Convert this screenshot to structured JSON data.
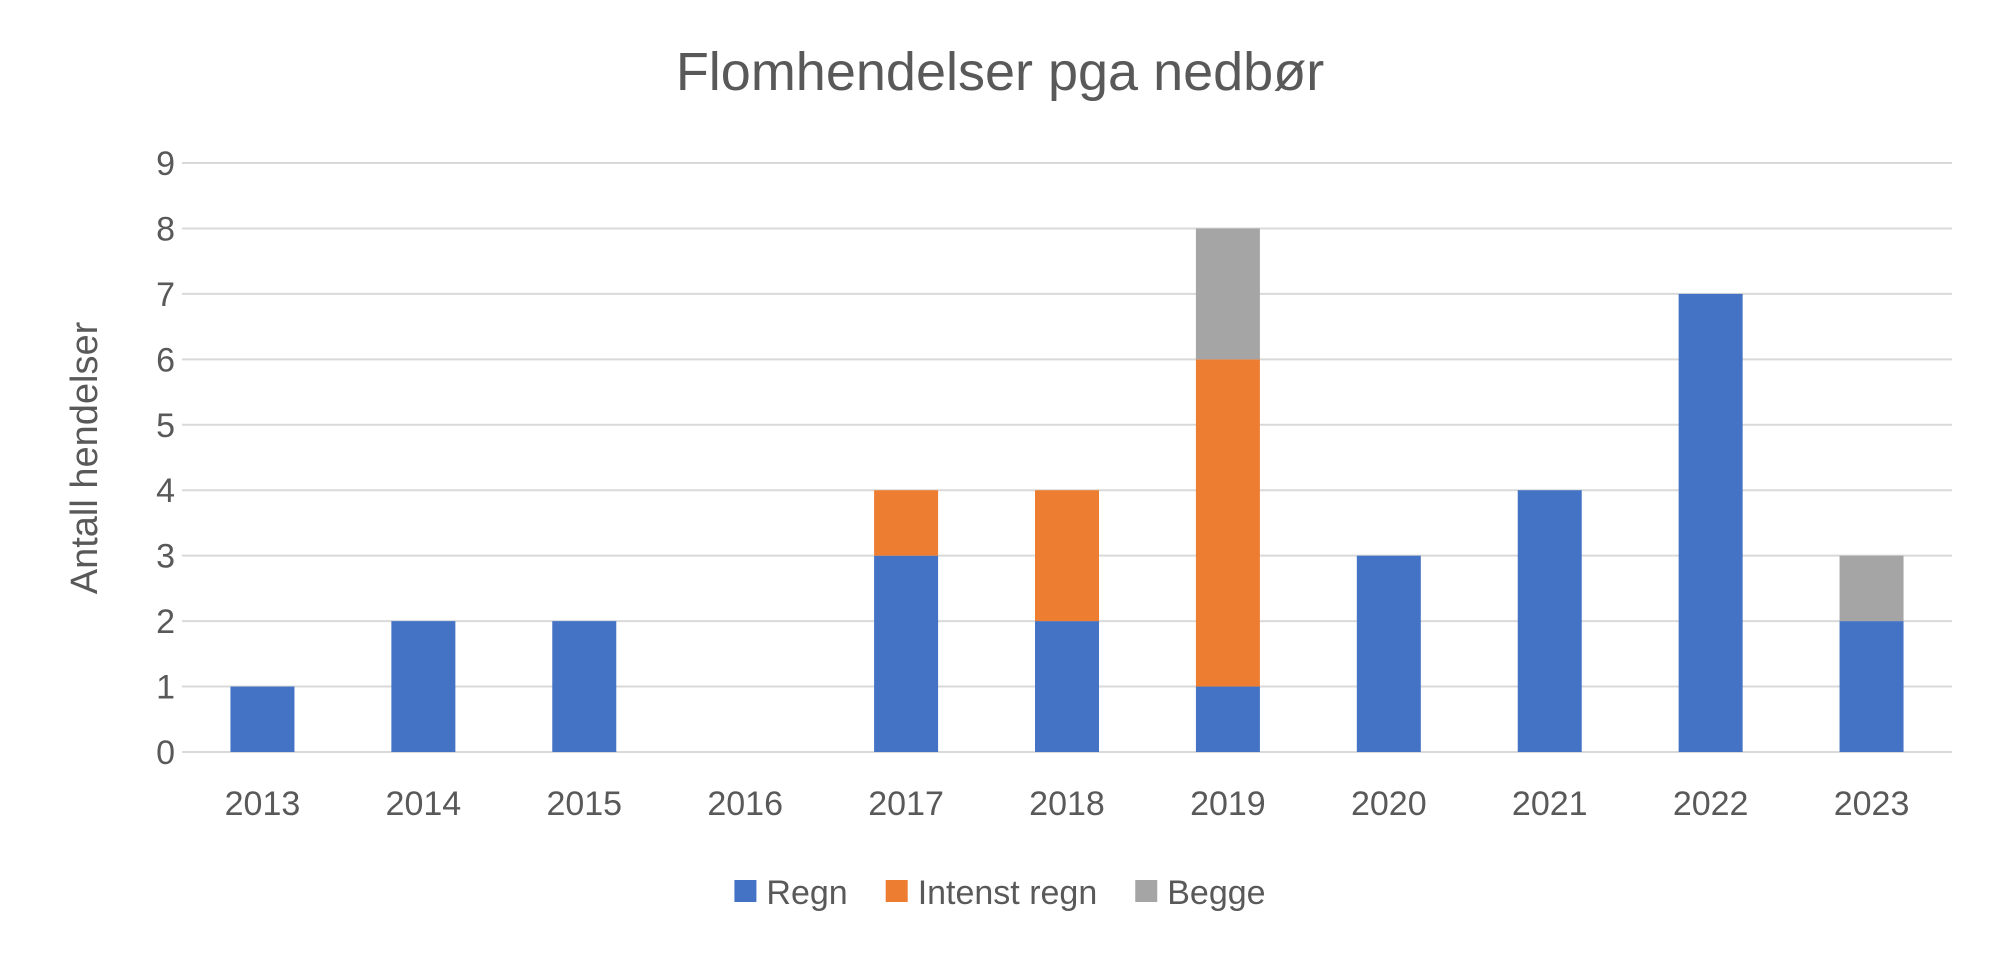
{
  "chart_data": {
    "type": "bar",
    "stacked": true,
    "title": "Flomhendelser pga nedbør",
    "xlabel": "",
    "ylabel": "Antall hendelser",
    "ylim": [
      0,
      9
    ],
    "yticks": [
      "0",
      "1",
      "2",
      "3",
      "4",
      "5",
      "6",
      "7",
      "8",
      "9"
    ],
    "grid": true,
    "legend_position": "bottom",
    "categories": [
      "2013",
      "2014",
      "2015",
      "2016",
      "2017",
      "2018",
      "2019",
      "2020",
      "2021",
      "2022",
      "2023"
    ],
    "series": [
      {
        "name": "Regn",
        "color": "#4472C4",
        "values": [
          1,
          2,
          2,
          0,
          3,
          2,
          1,
          3,
          4,
          7,
          2
        ]
      },
      {
        "name": "Intenst regn",
        "color": "#ED7D31",
        "values": [
          0,
          0,
          0,
          0,
          1,
          2,
          5,
          0,
          0,
          0,
          0
        ]
      },
      {
        "name": "Begge",
        "color": "#A5A5A5",
        "values": [
          0,
          0,
          0,
          0,
          0,
          0,
          2,
          0,
          0,
          0,
          1
        ]
      }
    ]
  }
}
